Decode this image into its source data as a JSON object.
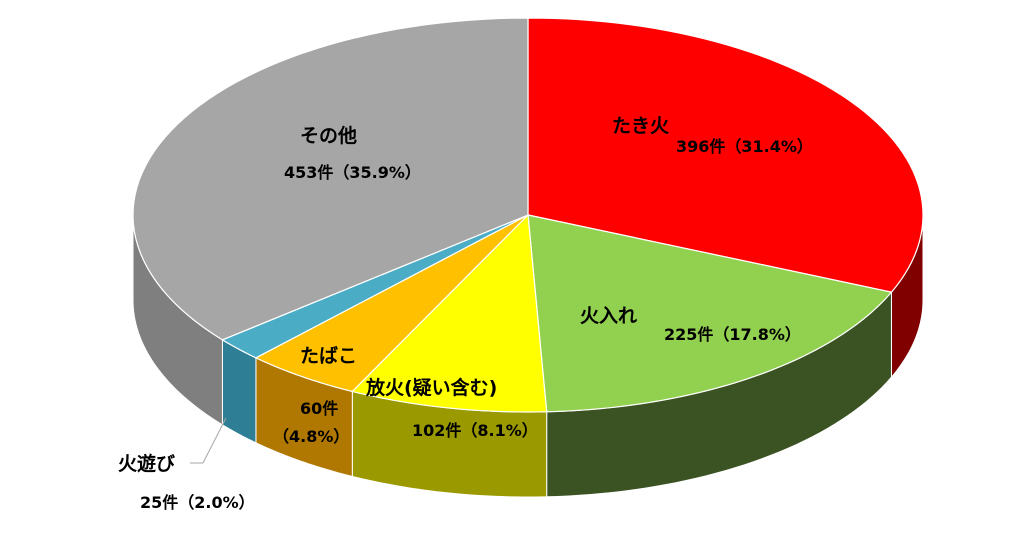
{
  "chart_data": {
    "type": "pie",
    "title": "",
    "three_d": true,
    "total_label_suffix": "件",
    "slices": [
      {
        "name": "たき火",
        "count": 396,
        "percent": 31.4,
        "value_label": "396件（31.4%）",
        "color": "#ff0000",
        "side_color": "#800000"
      },
      {
        "name": "火入れ",
        "count": 225,
        "percent": 17.8,
        "value_label": "225件（17.8%）",
        "color": "#92d050",
        "side_color": "#3b5323"
      },
      {
        "name": "放火(疑い含む)",
        "count": 102,
        "percent": 8.1,
        "value_label": "102件（8.1%）",
        "color": "#ffff00",
        "side_color": "#9a9a00"
      },
      {
        "name": "たばこ",
        "count": 60,
        "percent": 4.8,
        "value_label": "60件",
        "value_label_2": "（4.8%）",
        "color": "#ffc000",
        "side_color": "#b07800"
      },
      {
        "name": "火遊び",
        "count": 25,
        "percent": 2.0,
        "value_label": "25件（2.0%）",
        "color": "#4bacc6",
        "side_color": "#2e7f95"
      },
      {
        "name": "その他",
        "count": 453,
        "percent": 35.9,
        "value_label": "453件（35.9%）",
        "color": "#a6a6a6",
        "side_color": "#7f7f7f"
      }
    ]
  }
}
